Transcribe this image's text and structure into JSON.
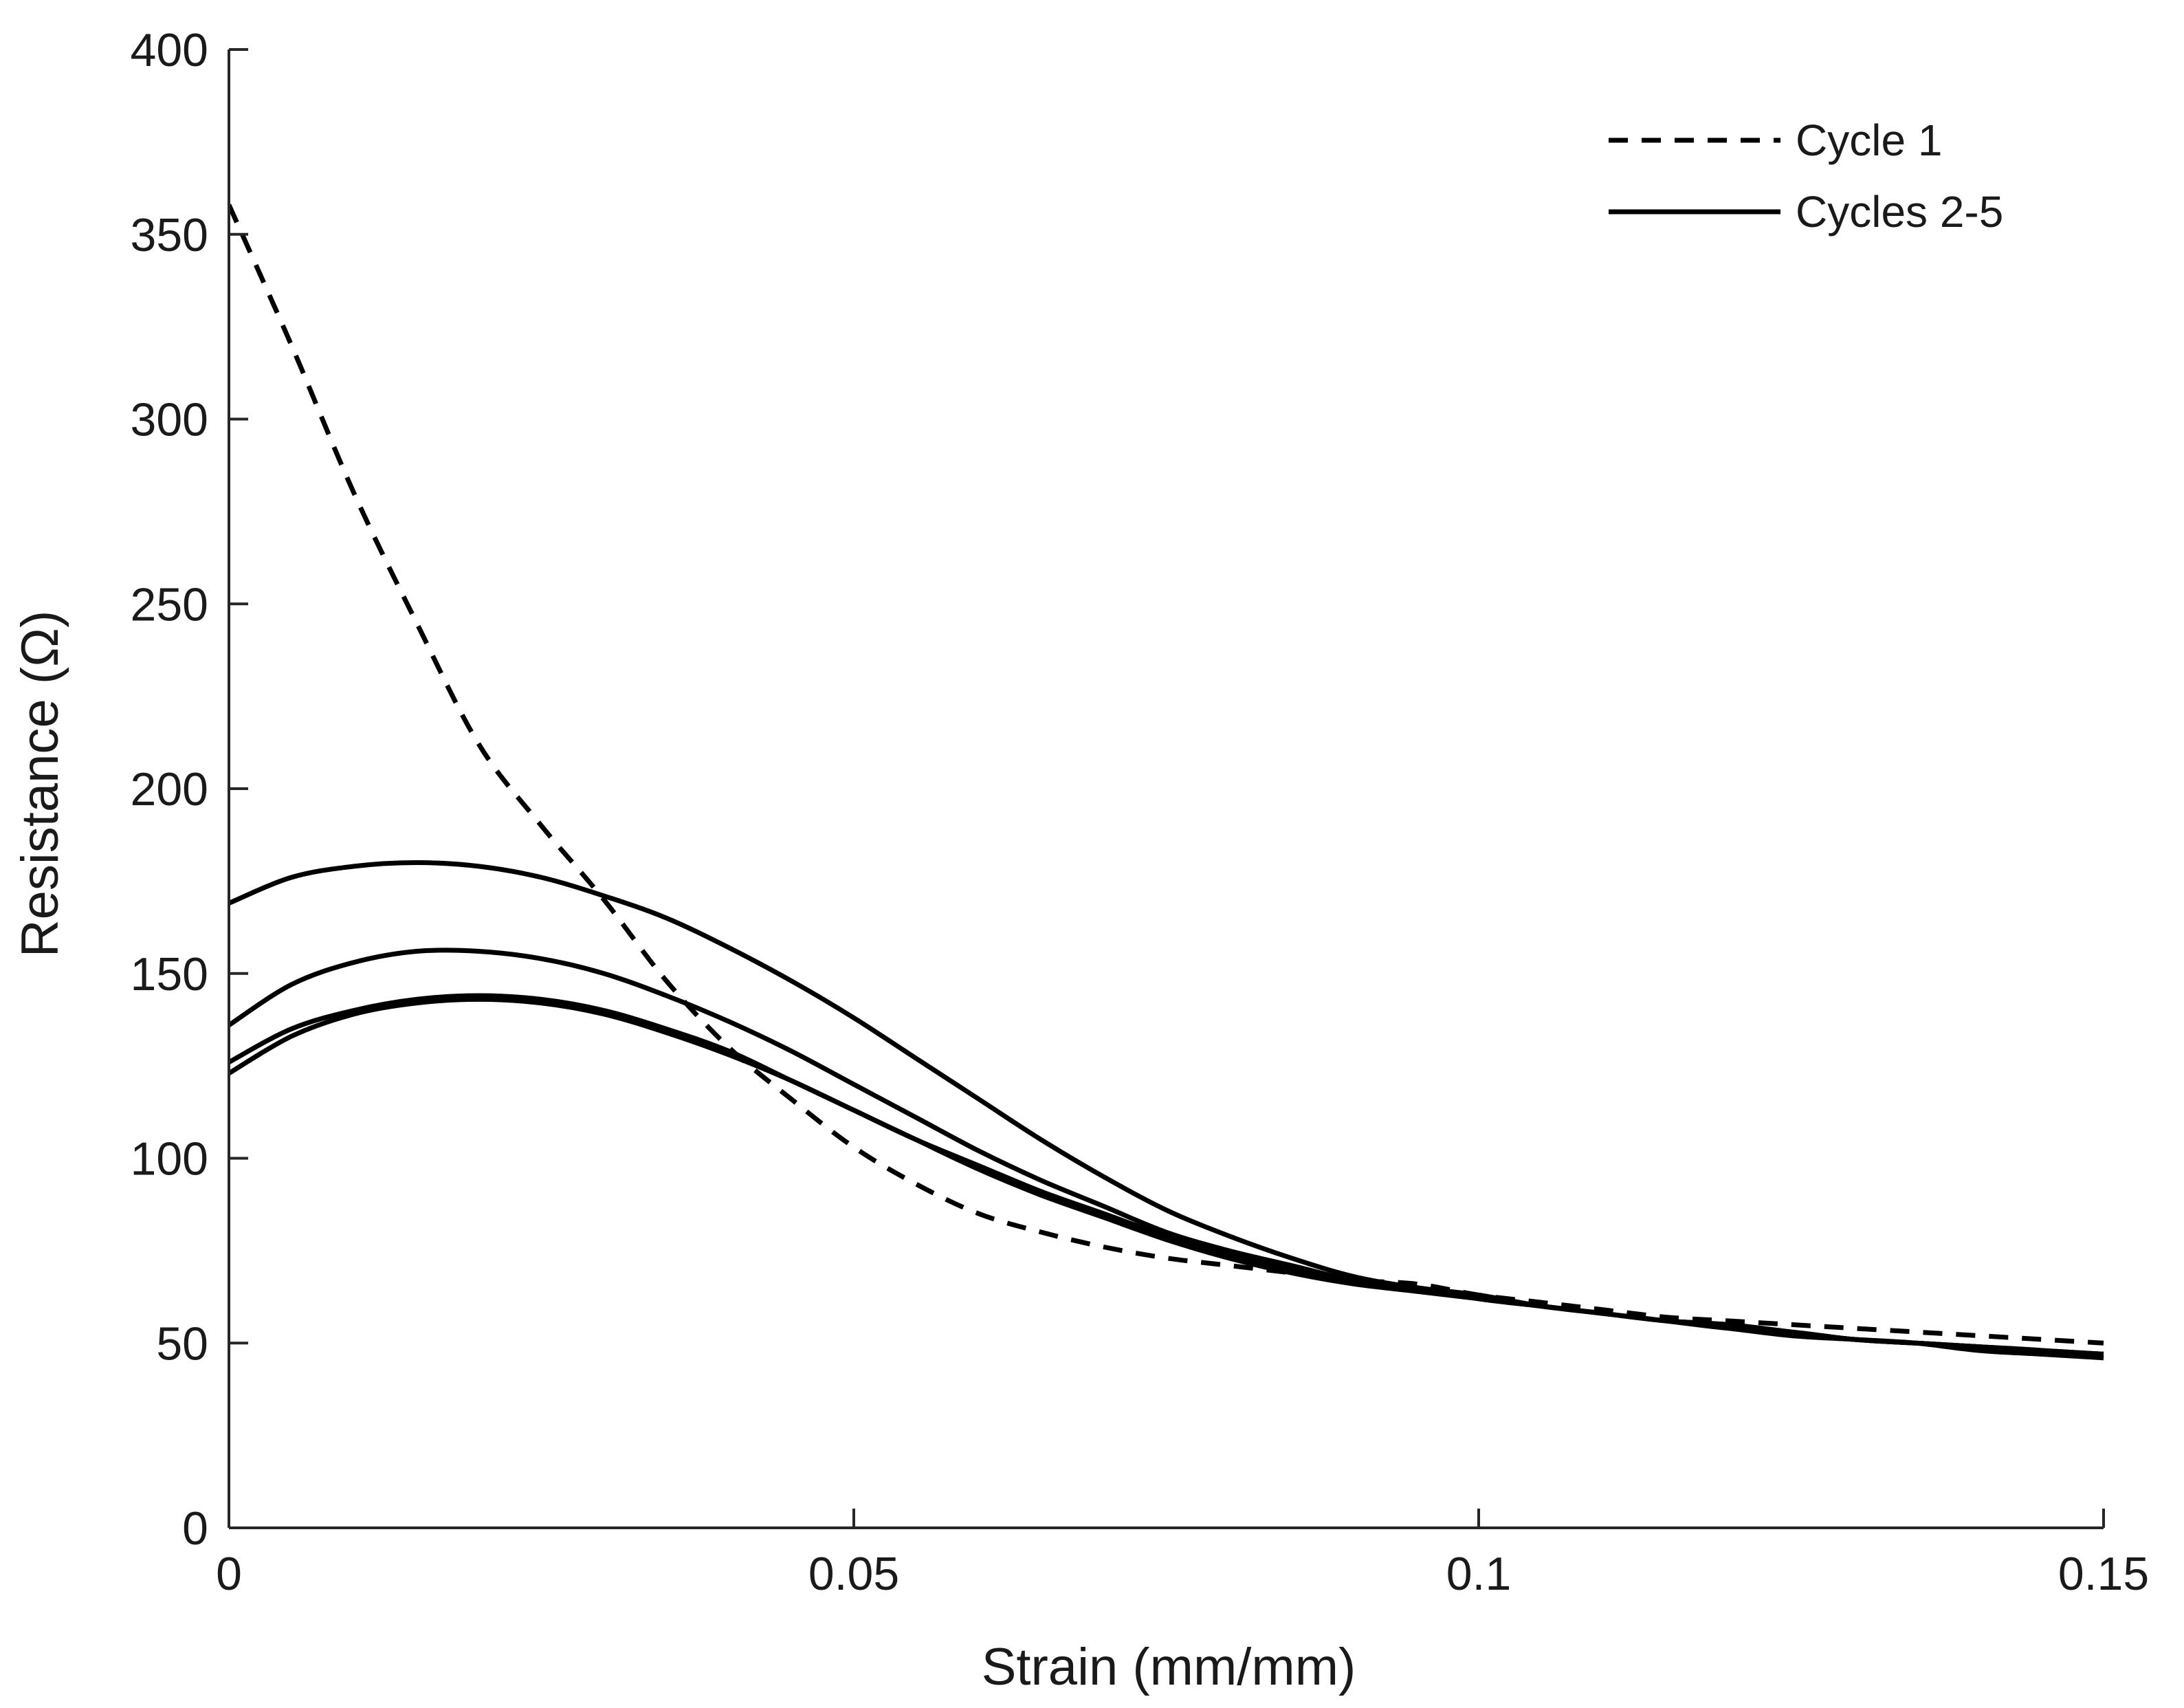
{
  "chart_data": {
    "type": "line",
    "title": "",
    "xlabel": "Strain (mm/mm)",
    "ylabel": "Resistance (Ω)",
    "xlim": [
      0,
      0.15
    ],
    "ylim": [
      0,
      400
    ],
    "grid": false,
    "legend_position": "top-right",
    "x_ticks": [
      {
        "value": 0,
        "label": "0"
      },
      {
        "value": 0.05,
        "label": "0.05"
      },
      {
        "value": 0.1,
        "label": "0.1"
      },
      {
        "value": 0.15,
        "label": "0.15"
      }
    ],
    "y_ticks": [
      {
        "value": 0,
        "label": "0"
      },
      {
        "value": 50,
        "label": "50"
      },
      {
        "value": 100,
        "label": "100"
      },
      {
        "value": 150,
        "label": "150"
      },
      {
        "value": 200,
        "label": "200"
      },
      {
        "value": 250,
        "label": "250"
      },
      {
        "value": 300,
        "label": "300"
      },
      {
        "value": 350,
        "label": "350"
      },
      {
        "value": 400,
        "label": "400"
      }
    ],
    "legend": [
      {
        "label": "Cycle 1",
        "style": "dashed"
      },
      {
        "label": "Cycles 2-5",
        "style": "solid"
      }
    ],
    "series": [
      {
        "name": "Cycle 1",
        "style": "dashed",
        "x": [
          0,
          0.005,
          0.01,
          0.015,
          0.02,
          0.025,
          0.03,
          0.035,
          0.04,
          0.045,
          0.05,
          0.055,
          0.06,
          0.065,
          0.07,
          0.075,
          0.08,
          0.085,
          0.09,
          0.095,
          0.1,
          0.105,
          0.11,
          0.115,
          0.12,
          0.125,
          0.13,
          0.135,
          0.14,
          0.145,
          0.15
        ],
        "y": [
          358,
          320,
          280,
          245,
          212,
          190,
          170,
          148,
          130,
          116,
          103,
          93,
          85,
          80,
          76,
          73,
          71,
          69,
          67,
          66,
          63,
          61,
          59,
          57,
          56,
          55,
          54,
          53,
          52,
          51,
          50
        ]
      },
      {
        "name": "Cycle 2",
        "style": "solid",
        "x": [
          0,
          0.005,
          0.01,
          0.015,
          0.02,
          0.025,
          0.03,
          0.035,
          0.04,
          0.045,
          0.05,
          0.055,
          0.06,
          0.065,
          0.07,
          0.075,
          0.08,
          0.085,
          0.09,
          0.095,
          0.1,
          0.105,
          0.11,
          0.115,
          0.12,
          0.125,
          0.13,
          0.135,
          0.14,
          0.145,
          0.15
        ],
        "y": [
          169,
          176,
          179,
          180,
          179,
          176,
          171,
          165,
          157,
          148,
          138,
          127,
          116,
          105,
          95,
          86,
          79,
          73,
          68,
          65,
          63,
          60,
          58,
          56,
          55,
          53,
          51,
          50,
          49,
          48,
          47
        ]
      },
      {
        "name": "Cycle 3",
        "style": "solid",
        "x": [
          0,
          0.005,
          0.01,
          0.015,
          0.02,
          0.025,
          0.03,
          0.035,
          0.04,
          0.045,
          0.05,
          0.055,
          0.06,
          0.065,
          0.07,
          0.075,
          0.08,
          0.085,
          0.09,
          0.095,
          0.1,
          0.105,
          0.11,
          0.115,
          0.12,
          0.125,
          0.13,
          0.135,
          0.14,
          0.145,
          0.15
        ],
        "y": [
          136,
          147,
          153,
          156,
          156,
          154,
          150,
          144,
          137,
          129,
          120,
          111,
          102,
          94,
          87,
          80,
          75,
          71,
          67,
          65,
          62,
          60,
          58,
          56,
          55,
          53,
          51,
          50,
          49,
          48,
          47
        ]
      },
      {
        "name": "Cycle 4",
        "style": "solid",
        "x": [
          0,
          0.005,
          0.01,
          0.015,
          0.02,
          0.025,
          0.03,
          0.035,
          0.04,
          0.045,
          0.05,
          0.055,
          0.06,
          0.065,
          0.07,
          0.075,
          0.08,
          0.085,
          0.09,
          0.095,
          0.1,
          0.105,
          0.11,
          0.115,
          0.12,
          0.125,
          0.13,
          0.135,
          0.14,
          0.145,
          0.15
        ],
        "y": [
          126,
          135,
          140,
          143,
          144,
          143,
          140,
          135,
          129,
          121,
          113,
          105,
          98,
          91,
          85,
          79,
          74,
          70,
          67,
          65,
          62,
          60,
          58,
          56,
          54,
          53,
          51,
          50,
          49,
          48,
          46
        ]
      },
      {
        "name": "Cycle 5",
        "style": "solid",
        "x": [
          0,
          0.005,
          0.01,
          0.015,
          0.02,
          0.025,
          0.03,
          0.035,
          0.04,
          0.045,
          0.05,
          0.055,
          0.06,
          0.065,
          0.07,
          0.075,
          0.08,
          0.085,
          0.09,
          0.095,
          0.1,
          0.105,
          0.11,
          0.115,
          0.12,
          0.125,
          0.13,
          0.135,
          0.14,
          0.145,
          0.15
        ],
        "y": [
          123,
          133,
          139,
          142,
          143,
          142,
          139,
          134,
          128,
          121,
          113,
          105,
          97,
          90,
          84,
          78,
          73,
          69,
          66,
          64,
          62,
          60,
          58,
          56,
          54,
          52,
          51,
          50,
          48,
          47,
          46
        ]
      }
    ]
  }
}
